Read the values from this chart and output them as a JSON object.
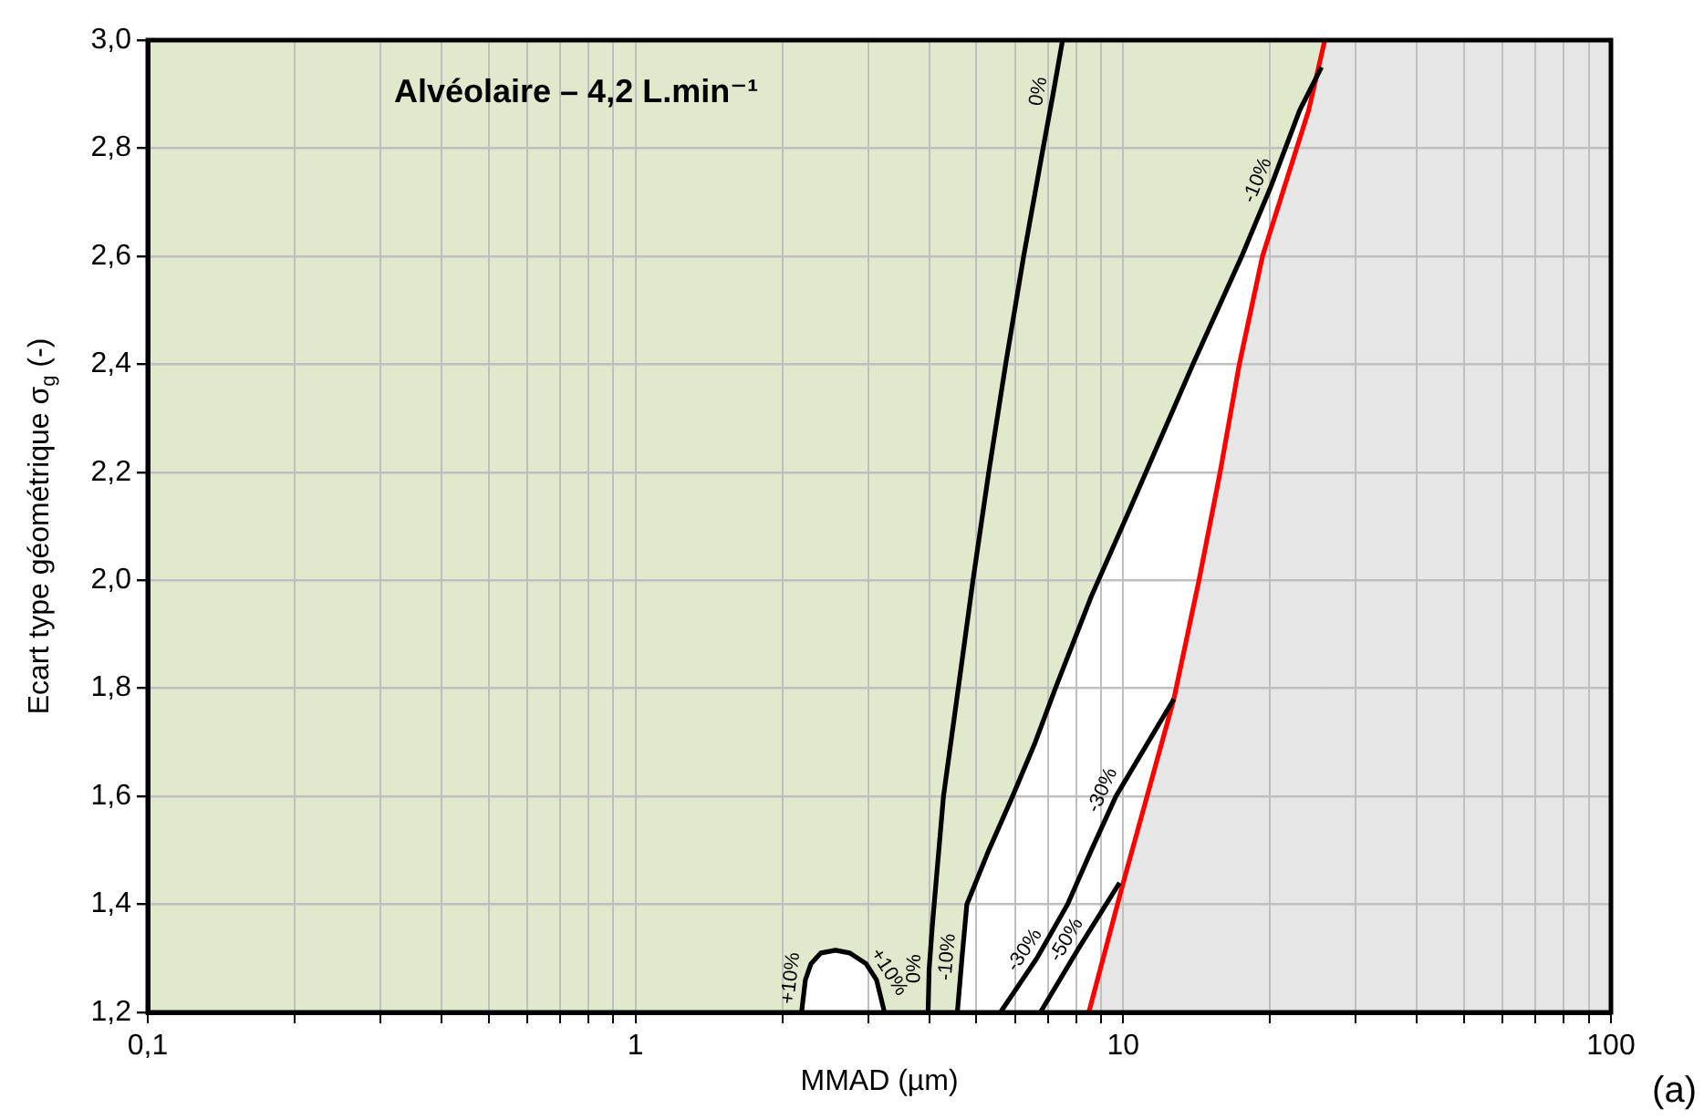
{
  "chart_data": {
    "type": "line",
    "title": "Alvéolaire – 4,2 L.min⁻¹",
    "xlabel": "MMAD (µm)",
    "ylabel": "Ecart type géométrique σ$_{g}$ (-)",
    "log": "x",
    "xlim": [
      0.1,
      100
    ],
    "xticks": [
      {
        "value": 0.1,
        "label": "0,1"
      },
      {
        "value": 0.2,
        "label": null
      },
      {
        "value": 0.3,
        "label": null
      },
      {
        "value": 0.4,
        "label": null
      },
      {
        "value": 0.5,
        "label": null
      },
      {
        "value": 0.6,
        "label": null
      },
      {
        "value": 0.7,
        "label": null
      },
      {
        "value": 0.8,
        "label": null
      },
      {
        "value": 0.9,
        "label": null
      },
      1,
      {
        "value": 2,
        "label": null
      },
      {
        "value": 3,
        "label": null
      },
      {
        "value": 4,
        "label": null
      },
      {
        "value": 5,
        "label": null
      },
      {
        "value": 6,
        "label": null
      },
      {
        "value": 7,
        "label": null
      },
      {
        "value": 8,
        "label": null
      },
      {
        "value": 9,
        "label": null
      },
      10,
      {
        "value": 20,
        "label": null
      },
      {
        "value": 30,
        "label": null
      },
      {
        "value": 40,
        "label": null
      },
      {
        "value": 50,
        "label": null
      },
      {
        "value": 60,
        "label": null
      },
      {
        "value": 70,
        "label": null
      },
      {
        "value": 80,
        "label": null
      },
      {
        "value": 90,
        "label": null
      },
      100
    ],
    "ylim": [
      1.2,
      3.0
    ],
    "yticks": [
      {
        "value": 1.2,
        "label": "1,2"
      },
      {
        "value": 1.4,
        "label": "1,4"
      },
      {
        "value": 1.6,
        "label": "1,6"
      },
      {
        "value": 1.8,
        "label": "1,8"
      },
      {
        "value": 2.0,
        "label": "2,0"
      },
      {
        "value": 2.2,
        "label": "2,2"
      },
      {
        "value": 2.4,
        "label": "2,4"
      },
      {
        "value": 2.6,
        "label": "2,6"
      },
      {
        "value": 2.8,
        "label": "2,8"
      },
      {
        "value": 3.0,
        "label": "3,0"
      }
    ],
    "bands": [
      {
        "axis": "x",
        "from": 25.9,
        "to": 100,
        "color": "#e6e6e6"
      }
    ],
    "grid": true,
    "legend": false,
    "marker": "none",
    "line_style": "solid",
    "series": [
      {
        "type": "area",
        "color": "#000000",
        "x": [
          2.19,
          2.23,
          2.29,
          2.4,
          2.57,
          2.75,
          2.97,
          3.12,
          3.24
        ],
        "values": [
          1.2,
          1.26,
          1.29,
          1.31,
          1.315,
          1.31,
          1.29,
          1.26,
          1.2
        ]
      },
      {
        "color": "#000000",
        "x": [
          3.98,
          4.0,
          4.06,
          4.28,
          4.59,
          4.92,
          5.3,
          5.74,
          6.25,
          6.85,
          7.18,
          7.51
        ],
        "values": [
          1.2,
          1.28,
          1.36,
          1.6,
          1.8,
          2.0,
          2.2,
          2.4,
          2.6,
          2.8,
          2.9,
          3.0
        ]
      },
      {
        "type": "area",
        "color": "#000000",
        "x": [
          4.57,
          4.67,
          4.78,
          5.3,
          5.93,
          6.6,
          7.26,
          8.6,
          10.3,
          13.9,
          17.5,
          20.1,
          23.0,
          25.5
        ],
        "values": [
          1.2,
          1.3,
          1.4,
          1.5,
          1.6,
          1.7,
          1.8,
          1.97,
          2.13,
          2.4,
          2.6,
          2.73,
          2.87,
          2.95
        ]
      },
      {
        "color": "#000000",
        "x": [
          5.6,
          6.65,
          7.69,
          8.6,
          9.66,
          12.7
        ],
        "values": [
          1.2,
          1.3,
          1.4,
          1.5,
          1.6,
          1.78
        ]
      },
      {
        "color": "#000000",
        "x": [
          6.76,
          8.12,
          9.83
        ],
        "values": [
          1.2,
          1.32,
          1.44
        ]
      },
      {
        "type": "area",
        "color": "#ff0000",
        "x": [
          8.5,
          10,
          12.7,
          14.3,
          15.8,
          17.3,
          19.3,
          24.0,
          25.9
        ],
        "values": [
          1.2,
          1.44,
          1.78,
          2.0,
          2.2,
          2.4,
          2.6,
          2.87,
          3.0
        ]
      }
    ],
    "annotations": [
      {
        "text": "+10%",
        "x": 2.23,
        "y": 1.26
      },
      {
        "text": "+10%",
        "x": 3.12,
        "y": 1.26
      },
      {
        "text": "0%",
        "x": 4.0,
        "y": 1.28
      },
      {
        "text": "0%",
        "x": 7.18,
        "y": 2.9
      },
      {
        "text": "-10%",
        "x": 4.67,
        "y": 1.3
      },
      {
        "text": "-10%",
        "x": 20.1,
        "y": 2.73
      },
      {
        "text": "-30%",
        "x": 6.65,
        "y": 1.3
      },
      {
        "text": "-30%",
        "x": 9.66,
        "y": 1.6
      },
      {
        "text": "-50%",
        "x": 8.12,
        "y": 1.32
      },
      "(a)"
    ]
  }
}
